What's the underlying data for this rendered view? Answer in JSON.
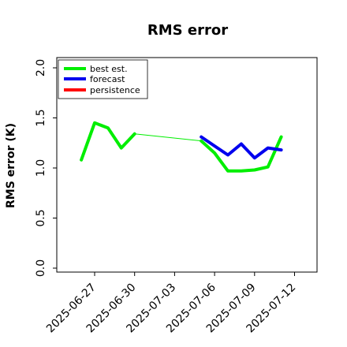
{
  "chart_data": {
    "type": "line",
    "title": "RMS error",
    "xlabel": "",
    "ylabel": "RMS error (K)",
    "ylim": [
      0.0,
      2.0
    ],
    "yticks": [
      "0.0",
      "0.5",
      "1.0",
      "1.5",
      "2.0"
    ],
    "xticks": [
      {
        "label": "2025-06-27",
        "color": "#000000"
      },
      {
        "label": "2025-06-30",
        "color": "#000000"
      },
      {
        "label": "2025-07-03",
        "color": "#008000"
      },
      {
        "label": "2025-07-06",
        "color": "#000000"
      },
      {
        "label": "2025-07-09",
        "color": "#000000"
      },
      {
        "label": "2025-07-12",
        "color": "#000000"
      }
    ],
    "legend_position": "top-left",
    "grid": false,
    "series": [
      {
        "name": "best est.",
        "color": "#00ee00",
        "style": "thick",
        "points": [
          [
            "2025-06-26",
            1.08
          ],
          [
            "2025-06-27",
            1.45
          ],
          [
            "2025-06-28",
            1.4
          ],
          [
            "2025-06-29",
            1.2
          ],
          [
            "2025-06-30",
            1.34
          ]
        ]
      },
      {
        "name": "",
        "color": "#00ee00",
        "style": "thin",
        "points": [
          [
            "2025-06-30",
            1.34
          ],
          [
            "2025-07-05",
            1.27
          ]
        ]
      },
      {
        "name": "",
        "color": "#00ee00",
        "style": "thick",
        "points": [
          [
            "2025-07-05",
            1.27
          ],
          [
            "2025-07-06",
            1.15
          ],
          [
            "2025-07-07",
            0.97
          ],
          [
            "2025-07-08",
            0.97
          ],
          [
            "2025-07-09",
            0.98
          ],
          [
            "2025-07-10",
            1.01
          ],
          [
            "2025-07-11",
            1.31
          ]
        ]
      },
      {
        "name": "forecast",
        "color": "#0000ee",
        "style": "thick",
        "points": [
          [
            "2025-07-05",
            1.31
          ],
          [
            "2025-07-06",
            1.22
          ],
          [
            "2025-07-07",
            1.13
          ],
          [
            "2025-07-08",
            1.24
          ],
          [
            "2025-07-09",
            1.1
          ],
          [
            "2025-07-10",
            1.2
          ],
          [
            "2025-07-11",
            1.18
          ]
        ]
      },
      {
        "name": "persistence",
        "color": "#ff0000",
        "style": "thick",
        "points": []
      }
    ]
  }
}
